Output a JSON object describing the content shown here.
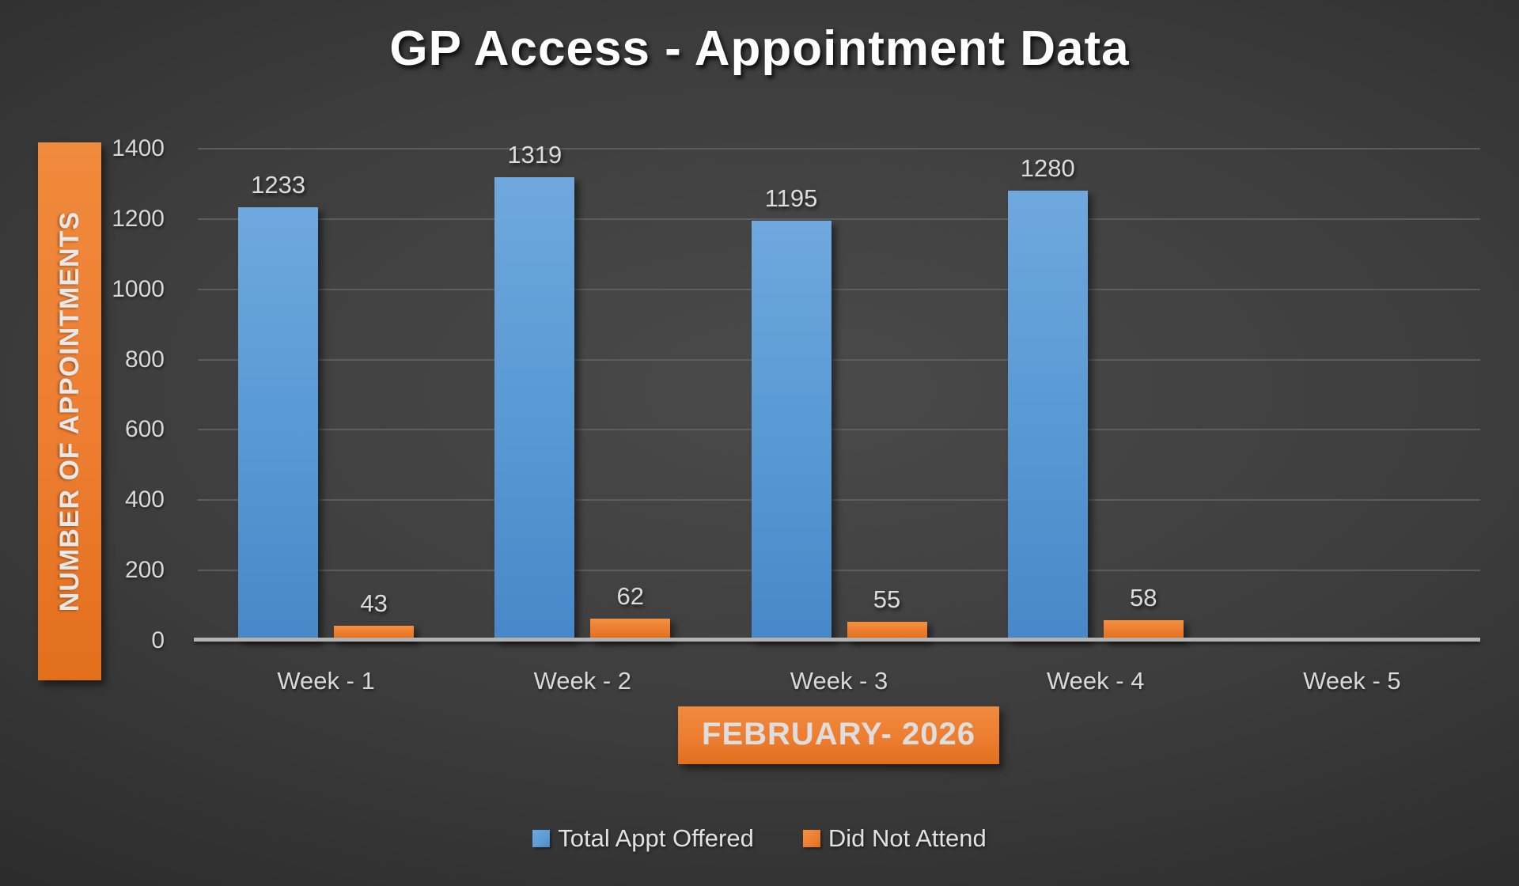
{
  "chart_data": {
    "type": "bar",
    "title": "GP Access - Appointment Data",
    "categories": [
      "Week - 1",
      "Week - 2",
      "Week - 3",
      "Week - 4",
      "Week - 5"
    ],
    "series": [
      {
        "name": "Total Appt Offered",
        "color": "#5B9BD5",
        "color_light": "#6FA8DE",
        "color_dark": "#4888C8",
        "values": [
          1233,
          1319,
          1195,
          1280,
          null
        ]
      },
      {
        "name": "Did Not Attend",
        "color": "#ED7D31",
        "color_light": "#F5913F",
        "color_dark": "#E06E14",
        "values": [
          43,
          62,
          55,
          58,
          null
        ]
      }
    ],
    "ylabel": "NUMBER OF APPOINTMENTS",
    "xlabel": "FEBRUARY- 2026",
    "ylim": [
      0,
      1400
    ],
    "yticks": [
      0,
      200,
      400,
      600,
      800,
      1000,
      1200,
      1400
    ],
    "grid": true,
    "legend_position": "bottom",
    "data_labels": true
  },
  "colors": {
    "background_center": "#4a4a4a",
    "background_edge": "#1d1d1d",
    "gridline": "#616161",
    "axis_line": "#b3b3b3",
    "text_light": "#d9d9d9",
    "title_text": "#ffffff",
    "accent_orange": "#ED7D31",
    "accent_blue": "#5B9BD5"
  }
}
